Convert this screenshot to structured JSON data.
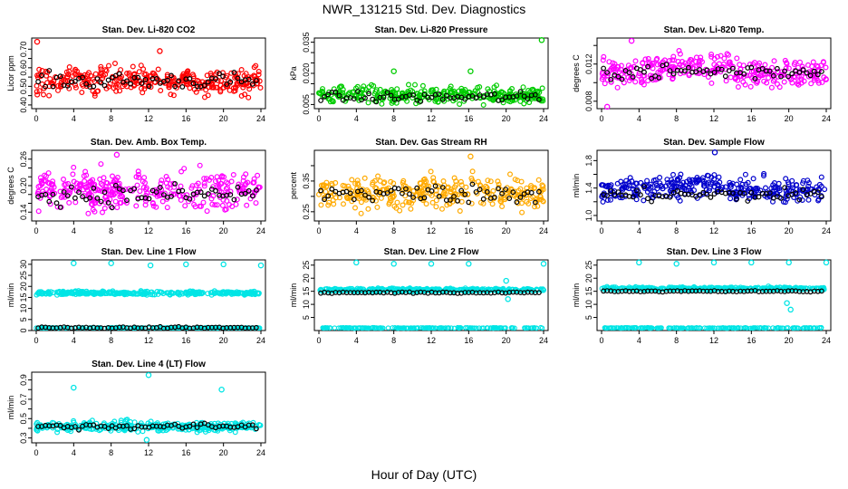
{
  "figure": {
    "title": "NWR_131215 Std. Dev. Diagnostics",
    "xlabel": "Hour of Day (UTC)"
  },
  "chart_data": [
    {
      "type": "scatter",
      "title": "Stan. Dev. Li-820 CO2",
      "ylabel": "Licor ppm",
      "color": "#ff0000",
      "xlim": [
        0,
        24
      ],
      "xticks": [
        0,
        4,
        8,
        12,
        16,
        20,
        24
      ],
      "ylim": [
        0.38,
        0.76
      ],
      "yticks": [
        0.4,
        0.45,
        0.5,
        0.55,
        0.6,
        0.65,
        0.7
      ],
      "ytick_labels": [
        "0.40",
        "",
        "0.50",
        "",
        "0.60",
        "",
        "0.70"
      ],
      "center": 0.53,
      "spread": 0.07,
      "black_center": 0.53,
      "outliers": [
        [
          0.1,
          0.74
        ],
        [
          13.2,
          0.69
        ]
      ]
    },
    {
      "type": "scatter",
      "title": "Stan. Dev. Li-820 Pressure",
      "ylabel": "kPa",
      "color": "#00cc00",
      "xlim": [
        0,
        24
      ],
      "xticks": [
        0,
        4,
        8,
        12,
        16,
        20,
        24
      ],
      "ylim": [
        0.003,
        0.037
      ],
      "yticks": [
        0.005,
        0.01,
        0.015,
        0.02,
        0.025,
        0.03,
        0.035
      ],
      "ytick_labels": [
        "0.005",
        "",
        "",
        "0.020",
        "",
        "",
        "0.035"
      ],
      "center": 0.0095,
      "spread": 0.004,
      "black_center": 0.0085,
      "outliers": [
        [
          8.0,
          0.021
        ],
        [
          16.2,
          0.021
        ],
        [
          23.8,
          0.036
        ]
      ]
    },
    {
      "type": "scatter",
      "title": "Stan. Dev. Li-820 Temp.",
      "ylabel": "degrees C",
      "color": "#ff00ff",
      "xlim": [
        0,
        24
      ],
      "xticks": [
        0,
        4,
        8,
        12,
        16,
        20,
        24
      ],
      "ylim": [
        0.0072,
        0.0148
      ],
      "yticks": [
        0.008,
        0.01,
        0.012,
        0.014
      ],
      "ytick_labels": [
        "0.008",
        "",
        "0.012",
        ""
      ],
      "center": 0.0112,
      "spread": 0.0015,
      "black_center": 0.0112,
      "outliers": [
        [
          3.2,
          0.0145
        ],
        [
          0.6,
          0.0074
        ]
      ]
    },
    {
      "type": "scatter",
      "title": "Stan. Dev. Amb. Box Temp.",
      "ylabel": "degrees C",
      "color": "#ff00ff",
      "xlim": [
        0,
        24
      ],
      "xticks": [
        0,
        4,
        8,
        12,
        16,
        20,
        24
      ],
      "ylim": [
        0.12,
        0.28
      ],
      "yticks": [
        0.14,
        0.16,
        0.18,
        0.2,
        0.22,
        0.24,
        0.26
      ],
      "ytick_labels": [
        "0.14",
        "",
        "",
        "0.20",
        "",
        "",
        "0.26"
      ],
      "center": 0.19,
      "spread": 0.04,
      "black_center": 0.18,
      "outliers": [
        [
          8.6,
          0.27
        ]
      ]
    },
    {
      "type": "scatter",
      "title": "Stan. Dev. Gas Stream RH",
      "ylabel": "percent",
      "color": "#ffaa00",
      "xlim": [
        0,
        24
      ],
      "xticks": [
        0,
        4,
        8,
        12,
        16,
        20,
        24
      ],
      "ylim": [
        0.22,
        0.45
      ],
      "yticks": [
        0.25,
        0.3,
        0.35,
        0.4
      ],
      "ytick_labels": [
        "0.25",
        "",
        "0.35",
        ""
      ],
      "center": 0.31,
      "spread": 0.05,
      "black_center": 0.31,
      "outliers": [
        [
          16.2,
          0.43
        ]
      ]
    },
    {
      "type": "scatter",
      "title": "Stan. Dev. Sample Flow",
      "ylabel": "ml/min",
      "color": "#0000cc",
      "xlim": [
        0,
        24
      ],
      "xticks": [
        0,
        4,
        8,
        12,
        16,
        20,
        24
      ],
      "ylim": [
        0.92,
        1.95
      ],
      "yticks": [
        1.0,
        1.2,
        1.4,
        1.6,
        1.8
      ],
      "ytick_labels": [
        "1.0",
        "",
        "1.4",
        "",
        "1.8"
      ],
      "center": 1.38,
      "spread": 0.17,
      "black_center": 1.3,
      "outliers": [
        [
          12.1,
          1.92
        ]
      ]
    },
    {
      "type": "scatter",
      "title": "Stan. Dev. Line 1 Flow",
      "ylabel": "ml/min",
      "color": "#00e5e5",
      "xlim": [
        0,
        24
      ],
      "xticks": [
        0,
        4,
        8,
        12,
        16,
        20,
        24
      ],
      "ylim": [
        0,
        32
      ],
      "yticks": [
        0,
        5,
        10,
        15,
        20,
        25,
        30
      ],
      "ytick_labels": [
        "0",
        "5",
        "10",
        "15",
        "20",
        "25",
        "30"
      ],
      "center": 17,
      "spread": 0.8,
      "low_band": 1.2,
      "black_center": 1.3,
      "outliers": [
        [
          4,
          30.5
        ],
        [
          8,
          30.5
        ],
        [
          12.2,
          29.5
        ],
        [
          16,
          30
        ],
        [
          20,
          30
        ],
        [
          24,
          29.5
        ]
      ]
    },
    {
      "type": "scatter",
      "title": "Stan. Dev. Line 2 Flow",
      "ylabel": "ml/min",
      "color": "#00e5e5",
      "xlim": [
        0,
        24
      ],
      "xticks": [
        0,
        4,
        8,
        12,
        16,
        20,
        24
      ],
      "ylim": [
        0,
        27
      ],
      "yticks": [
        5,
        10,
        15,
        20,
        25
      ],
      "ytick_labels": [
        "5",
        "10",
        "15",
        "20",
        "25"
      ],
      "center": 15.5,
      "spread": 0.6,
      "low_band": 1.0,
      "black_center": 14.5,
      "outliers": [
        [
          4,
          26
        ],
        [
          8,
          25.5
        ],
        [
          12,
          25.5
        ],
        [
          16,
          25.5
        ],
        [
          20,
          19
        ],
        [
          20.2,
          12
        ],
        [
          24,
          25.5
        ]
      ]
    },
    {
      "type": "scatter",
      "title": "Stan. Dev. Line 3 Flow",
      "ylabel": "ml/min",
      "color": "#00e5e5",
      "xlim": [
        0,
        24
      ],
      "xticks": [
        0,
        4,
        8,
        12,
        16,
        20,
        24
      ],
      "ylim": [
        0,
        27
      ],
      "yticks": [
        5,
        10,
        15,
        20,
        25
      ],
      "ytick_labels": [
        "5",
        "10",
        "15",
        "20",
        "25"
      ],
      "center": 16,
      "spread": 0.6,
      "low_band": 1.0,
      "black_center": 15,
      "outliers": [
        [
          4,
          26
        ],
        [
          8,
          25.5
        ],
        [
          12,
          26
        ],
        [
          16,
          26
        ],
        [
          19.8,
          10.5
        ],
        [
          20.2,
          8
        ],
        [
          20,
          26
        ],
        [
          24,
          26
        ]
      ]
    },
    {
      "type": "scatter",
      "title": "Stan. Dev. Line 4 (LT) Flow",
      "ylabel": "ml/min",
      "color": "#00e5e5",
      "xlim": [
        0,
        24
      ],
      "xticks": [
        0,
        4,
        8,
        12,
        16,
        20,
        24
      ],
      "ylim": [
        0.25,
        0.98
      ],
      "yticks": [
        0.3,
        0.4,
        0.5,
        0.6,
        0.7,
        0.8,
        0.9
      ],
      "ytick_labels": [
        "0.3",
        "",
        "0.5",
        "",
        "0.7",
        "",
        "0.9"
      ],
      "center": 0.42,
      "spread": 0.05,
      "black_center": 0.42,
      "outliers": [
        [
          4,
          0.82
        ],
        [
          12,
          0.95
        ],
        [
          19.8,
          0.8
        ],
        [
          11.8,
          0.28
        ]
      ]
    }
  ]
}
